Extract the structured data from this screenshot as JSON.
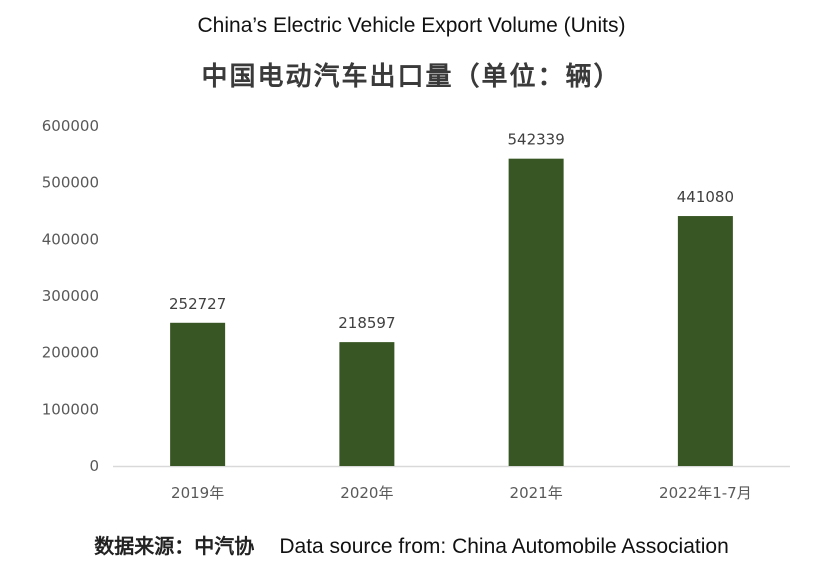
{
  "chart_data": {
    "type": "bar",
    "title": "China’s Electric Vehicle Export Volume (Units)",
    "subtitle": "中国电动汽车出口量（单位：辆）",
    "categories": [
      "2019年",
      "2020年",
      "2021年",
      "2022年1-7月"
    ],
    "values": [
      252727,
      218597,
      542339,
      441080
    ],
    "data_labels": [
      "252727",
      "218597",
      "542339",
      "441080"
    ],
    "yticks": [
      "0",
      "100000",
      "200000",
      "300000",
      "400000",
      "500000",
      "600000"
    ],
    "ylim": [
      0,
      600000
    ],
    "xlabel": "",
    "ylabel": "",
    "grid": false,
    "bar_color": "#375623",
    "axis_color": "#d9d9d9"
  },
  "footer": {
    "source_zh": "数据来源：中汽协",
    "source_en": "Data source from: China Automobile Association"
  }
}
